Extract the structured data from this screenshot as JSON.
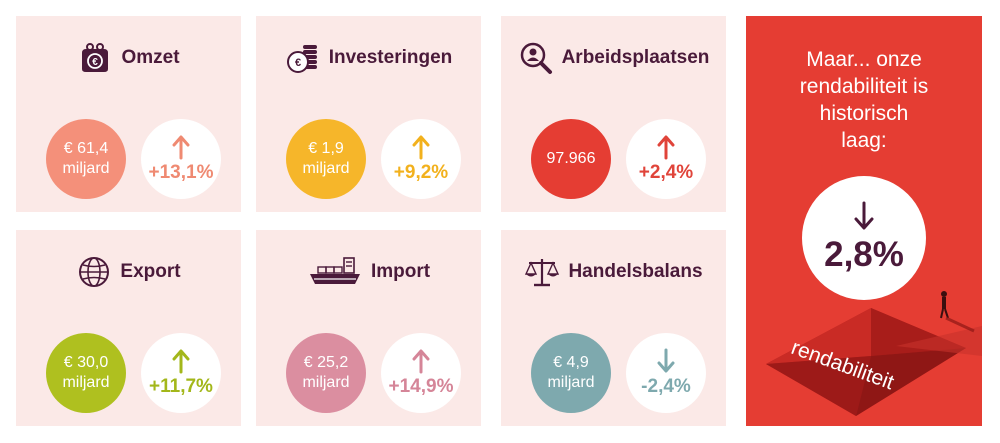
{
  "cards": [
    {
      "title": "Omzet",
      "icon": "wallet-euro-icon",
      "value_line1": "€ 61,4",
      "value_line2": "miljard",
      "change": "+13,1%",
      "direction": "up",
      "value_color": "#f4907a",
      "change_color": "#ef8a72"
    },
    {
      "title": "Investeringen",
      "icon": "coins-euro-icon",
      "value_line1": "€ 1,9",
      "value_line2": "miljard",
      "change": "+9,2%",
      "direction": "up",
      "value_color": "#f6b62a",
      "change_color": "#f2b11d"
    },
    {
      "title": "Arbeidsplaatsen",
      "icon": "magnifier-person-icon",
      "value_line1": "97.966",
      "value_line2": "",
      "change": "+2,4%",
      "direction": "up",
      "value_color": "#e53d33",
      "change_color": "#e0443a"
    },
    {
      "title": "Export",
      "icon": "globe-icon",
      "value_line1": "€ 30,0",
      "value_line2": "miljard",
      "change": "+11,7%",
      "direction": "up",
      "value_color": "#afc01f",
      "change_color": "#a3b71a"
    },
    {
      "title": "Import",
      "icon": "cargo-ship-icon",
      "value_line1": "€ 25,2",
      "value_line2": "miljard",
      "change": "+14,9%",
      "direction": "up",
      "value_color": "#db8ea0",
      "change_color": "#d58598"
    },
    {
      "title": "Handelsbalans",
      "icon": "scales-icon",
      "value_line1": "€ 4,9",
      "value_line2": "miljard",
      "change": "-2,4%",
      "direction": "down",
      "value_color": "#7ea9ae",
      "change_color": "#7ea9ae"
    }
  ],
  "highlight": {
    "line1": "Maar... onze",
    "line2": "rendabiliteit is",
    "line3": "historisch",
    "line4": "laag:",
    "value": "2,8%",
    "direction": "down",
    "label": "rendabiliteit",
    "background": "#e53d33"
  },
  "colors": {
    "card_bg": "#fbe9e7",
    "title": "#4a1a3a"
  }
}
